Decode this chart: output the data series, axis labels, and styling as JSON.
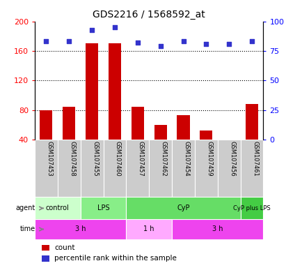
{
  "title": "GDS2216 / 1568592_at",
  "samples": [
    "GSM107453",
    "GSM107458",
    "GSM107455",
    "GSM107460",
    "GSM107457",
    "GSM107462",
    "GSM107454",
    "GSM107459",
    "GSM107456",
    "GSM107461"
  ],
  "counts": [
    80,
    84,
    170,
    170,
    84,
    60,
    73,
    52,
    40,
    88
  ],
  "percentile_ranks": [
    83,
    83,
    93,
    95,
    82,
    79,
    83,
    81,
    81,
    83
  ],
  "ymin": 40,
  "ymax": 200,
  "yticks": [
    40,
    80,
    120,
    160,
    200
  ],
  "right_yticks": [
    0,
    25,
    50,
    75,
    100
  ],
  "bar_color": "#cc0000",
  "dot_color": "#3333cc",
  "agent_groups": [
    {
      "label": "control",
      "start": 0,
      "end": 2,
      "color": "#ccffcc"
    },
    {
      "label": "LPS",
      "start": 2,
      "end": 4,
      "color": "#88ee88"
    },
    {
      "label": "CyP",
      "start": 4,
      "end": 9,
      "color": "#66dd66"
    },
    {
      "label": "CyP plus LPS",
      "start": 9,
      "end": 10,
      "color": "#44cc44"
    }
  ],
  "time_groups": [
    {
      "label": "3 h",
      "start": 0,
      "end": 4,
      "color": "#ee44ee"
    },
    {
      "label": "1 h",
      "start": 4,
      "end": 6,
      "color": "#ffaaff"
    },
    {
      "label": "3 h",
      "start": 6,
      "end": 10,
      "color": "#ee44ee"
    }
  ],
  "legend_items": [
    {
      "label": "count",
      "color": "#cc0000"
    },
    {
      "label": "percentile rank within the sample",
      "color": "#3333cc"
    }
  ],
  "sample_cell_color": "#cccccc",
  "grid_color": "black",
  "grid_style": "dotted"
}
